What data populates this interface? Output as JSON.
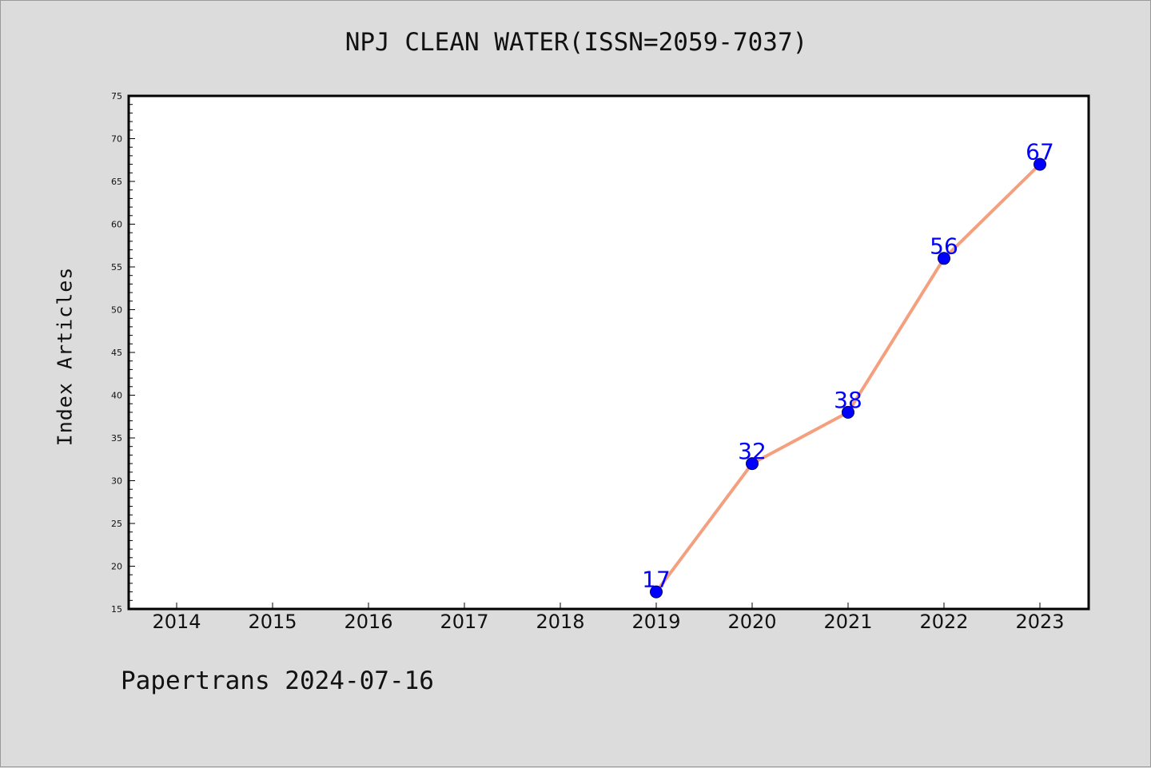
{
  "chart_data": {
    "type": "line",
    "title": "NPJ CLEAN WATER(ISSN=2059-7037)",
    "xlabel": "",
    "ylabel": "Index Articles",
    "footer": "Papertrans 2024-07-16",
    "categories": [
      "2014",
      "2015",
      "2016",
      "2017",
      "2018",
      "2019",
      "2020",
      "2021",
      "2022",
      "2023"
    ],
    "series": [
      {
        "x": [
          "2019",
          "2020",
          "2021",
          "2022",
          "2023"
        ],
        "values": [
          17,
          32,
          38,
          56,
          67
        ]
      }
    ],
    "ylim": [
      15,
      75
    ],
    "yticks": [
      15,
      20,
      25,
      30,
      35,
      40,
      45,
      50,
      55,
      60,
      65,
      70,
      75
    ],
    "grid": false,
    "colors": {
      "line": "#f4a07f",
      "marker": "#0000ff",
      "label": "#0000ff"
    }
  }
}
